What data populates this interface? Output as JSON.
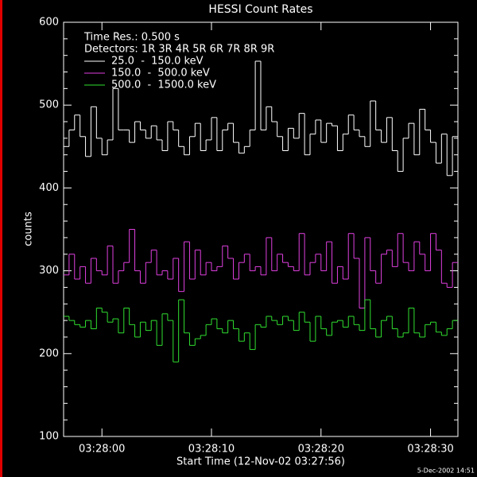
{
  "chart_data": {
    "type": "step",
    "title": "HESSI Count Rates",
    "xlabel": "Start Time (12-Nov-02 03:27:56)",
    "ylabel": "counts",
    "footer": "5-Dec-2002 14:51",
    "annotations": [
      "Time Res.: 0.500 s",
      "Detectors: 1R 3R 4R 5R 6R 7R 8R 9R"
    ],
    "x": [
      0.5,
      1,
      1.5,
      2,
      2.5,
      3,
      3.5,
      4,
      4.5,
      5,
      5.5,
      6,
      6.5,
      7,
      7.5,
      8,
      8.5,
      9,
      9.5,
      10,
      10.5,
      11,
      11.5,
      12,
      12.5,
      13,
      13.5,
      14,
      14.5,
      15,
      15.5,
      16,
      16.5,
      17,
      17.5,
      18,
      18.5,
      19,
      19.5,
      20,
      20.5,
      21,
      21.5,
      22,
      22.5,
      23,
      23.5,
      24,
      24.5,
      25,
      25.5,
      26,
      26.5,
      27,
      27.5,
      28,
      28.5,
      29,
      29.5,
      30,
      30.5,
      31,
      31.5,
      32,
      32.5,
      33,
      33.5,
      34,
      34.5,
      35,
      35.5,
      36
    ],
    "xlim": [
      0.5,
      36.5
    ],
    "xticks": [
      {
        "value": 4,
        "label": "03:28:00"
      },
      {
        "value": 14,
        "label": "03:28:10"
      },
      {
        "value": 24,
        "label": "03:28:20"
      },
      {
        "value": 34,
        "label": "03:28:30"
      }
    ],
    "ylim": [
      100,
      600
    ],
    "yticks": [
      100,
      200,
      300,
      400,
      500,
      600
    ],
    "series": [
      {
        "name": "25.0  -  150.0 keV",
        "color": "#ffffff",
        "values": [
          450,
          470,
          488,
          462,
          438,
          498,
          460,
          440,
          458,
          520,
          470,
          470,
          455,
          480,
          470,
          460,
          475,
          458,
          445,
          480,
          470,
          450,
          440,
          462,
          478,
          445,
          458,
          485,
          445,
          470,
          478,
          455,
          442,
          450,
          470,
          553,
          470,
          498,
          480,
          462,
          445,
          472,
          460,
          490,
          440,
          465,
          482,
          455,
          478,
          475,
          445,
          465,
          488,
          470,
          462,
          450,
          505,
          470,
          455,
          485,
          445,
          420,
          460,
          478,
          440,
          495,
          470,
          455,
          430,
          465,
          415,
          462
        ]
      },
      {
        "name": "150.0  -  500.0 keV",
        "color": "#e040e0",
        "values": [
          295,
          320,
          290,
          305,
          285,
          315,
          300,
          295,
          330,
          285,
          300,
          310,
          350,
          300,
          285,
          310,
          325,
          295,
          300,
          290,
          315,
          275,
          335,
          290,
          325,
          295,
          310,
          300,
          305,
          330,
          315,
          290,
          310,
          320,
          300,
          305,
          295,
          340,
          300,
          320,
          310,
          305,
          300,
          345,
          295,
          310,
          320,
          300,
          335,
          285,
          305,
          290,
          345,
          315,
          255,
          340,
          300,
          285,
          320,
          325,
          305,
          345,
          310,
          300,
          335,
          320,
          300,
          345,
          325,
          285,
          280,
          310
        ]
      },
      {
        "name": "500.0  -  1500.0 keV",
        "color": "#30e030",
        "values": [
          245,
          240,
          235,
          232,
          240,
          230,
          255,
          250,
          238,
          242,
          225,
          255,
          235,
          220,
          238,
          228,
          240,
          210,
          248,
          240,
          190,
          265,
          225,
          210,
          218,
          222,
          235,
          242,
          230,
          225,
          240,
          230,
          215,
          225,
          205,
          235,
          232,
          245,
          240,
          235,
          245,
          240,
          228,
          250,
          238,
          215,
          245,
          230,
          222,
          238,
          240,
          232,
          245,
          235,
          228,
          265,
          230,
          220,
          240,
          245,
          230,
          220,
          225,
          255,
          225,
          220,
          235,
          238,
          226,
          222,
          230,
          240
        ]
      }
    ]
  }
}
